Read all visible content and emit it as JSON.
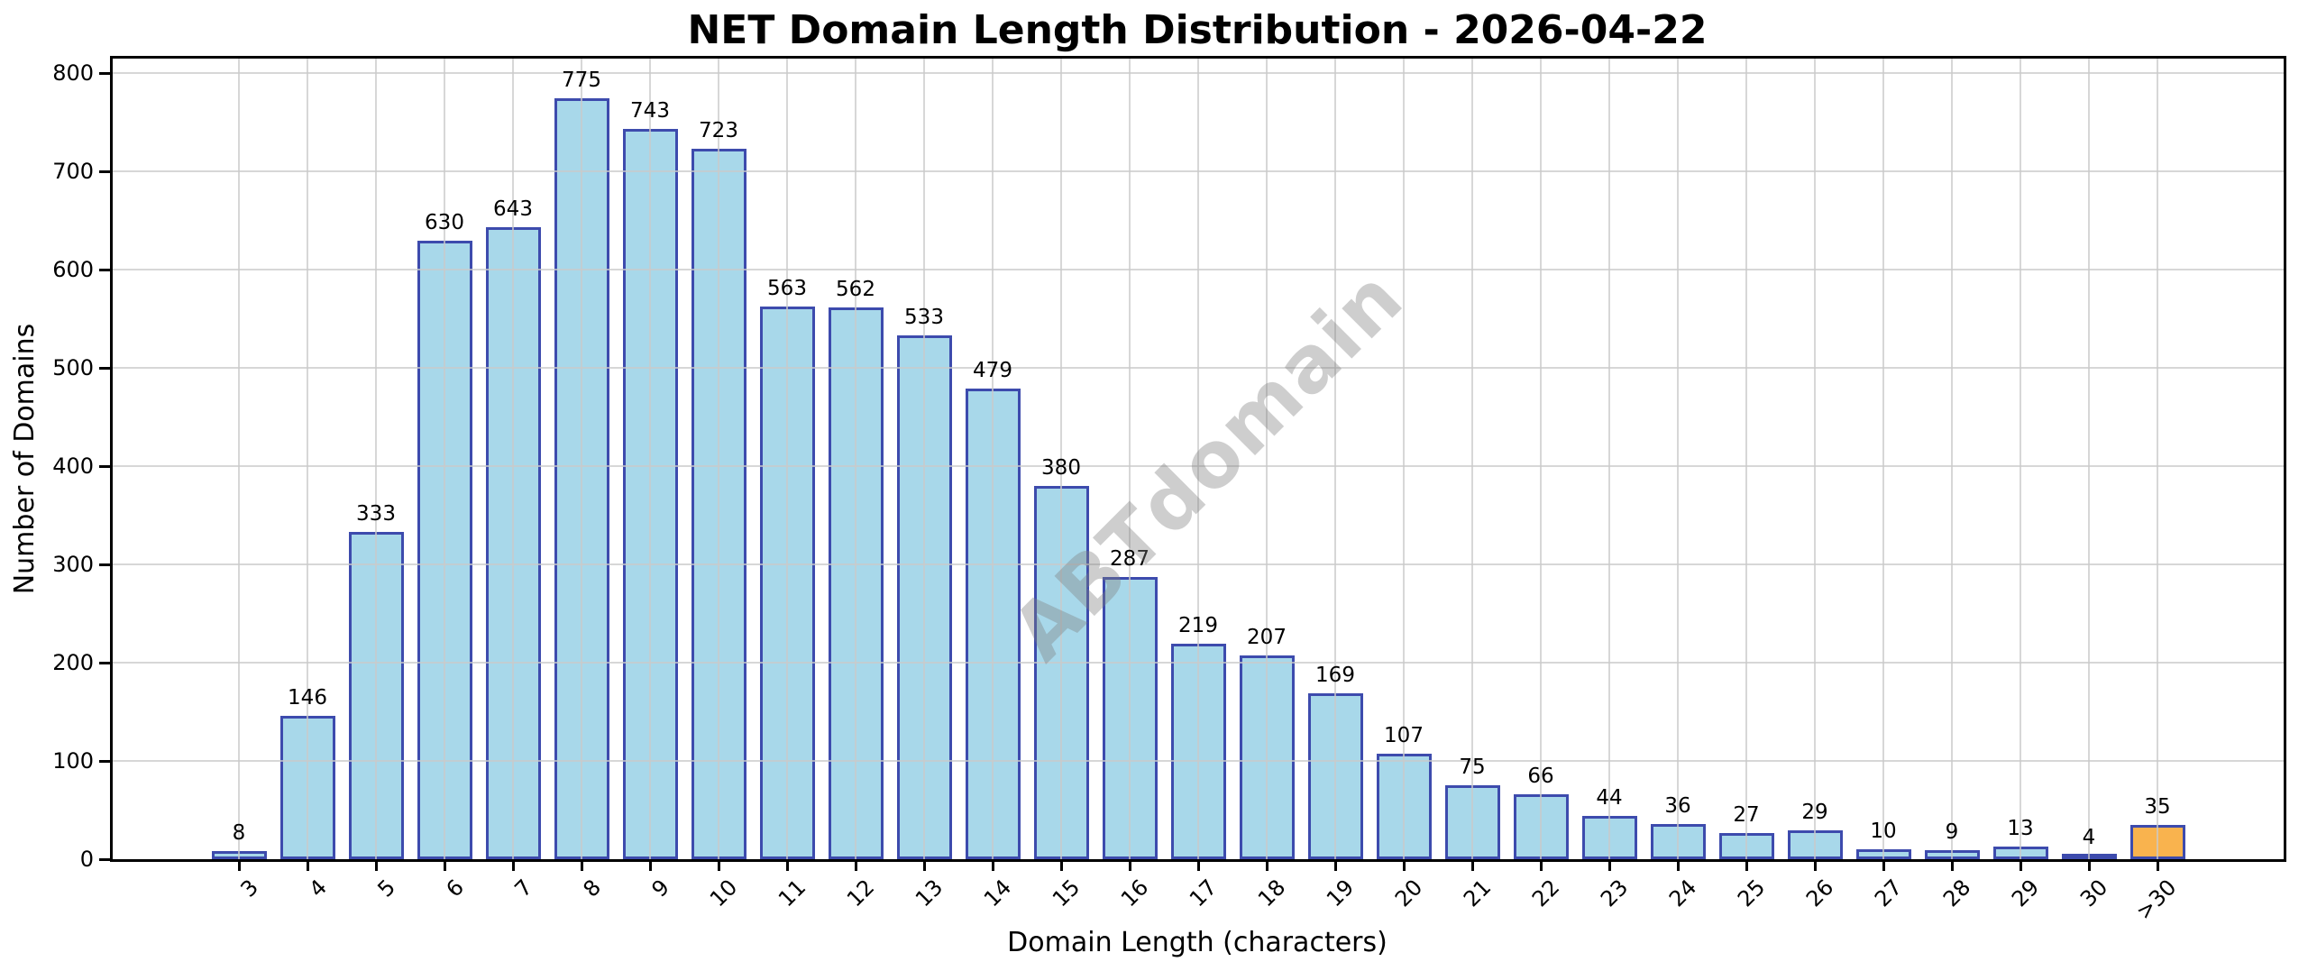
{
  "title": "NET Domain Length Distribution - 2026-04-22",
  "watermark_text": "ABTdomain",
  "chart_data": {
    "type": "bar",
    "title": "NET Domain Length Distribution - 2026-04-22",
    "xlabel": "Domain Length (characters)",
    "ylabel": "Number of Domains",
    "categories": [
      "3",
      "4",
      "5",
      "6",
      "7",
      "8",
      "9",
      "10",
      "11",
      "12",
      "13",
      "14",
      "15",
      "16",
      "17",
      "18",
      "19",
      "20",
      "21",
      "22",
      "23",
      "24",
      "25",
      "26",
      "27",
      "28",
      "29",
      "30",
      ">30"
    ],
    "values": [
      8,
      146,
      333,
      630,
      643,
      775,
      743,
      723,
      563,
      562,
      533,
      479,
      380,
      287,
      219,
      207,
      169,
      107,
      75,
      66,
      44,
      36,
      27,
      29,
      10,
      9,
      13,
      4,
      35
    ],
    "value_labels_shown": true,
    "ylim": [
      0,
      815
    ],
    "yticks": [
      0,
      100,
      200,
      300,
      400,
      500,
      600,
      700,
      800
    ],
    "grid": true,
    "xtick_rotation": 45,
    "legend": "none",
    "colors": {
      "bar_fill": "#A8D8EA",
      "bar_edge": "#3D4BAD",
      "highlight_fill": "#F9B34E",
      "grid": "#c9c9c9",
      "axis": "#000000",
      "watermark": "#d2d2d2"
    },
    "highlight_index": 28
  }
}
